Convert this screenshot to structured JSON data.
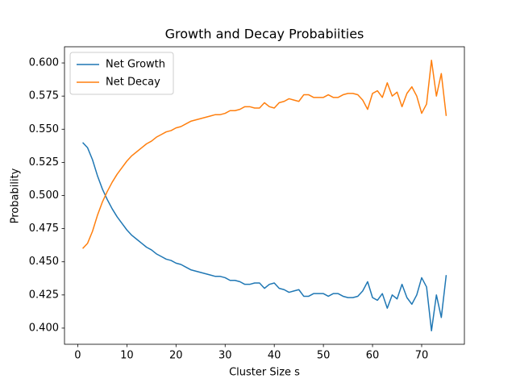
{
  "chart_data": {
    "type": "line",
    "title": "Growth and Decay Probabiities",
    "xlabel": "Cluster Size s",
    "ylabel": "Probability",
    "x": [
      1,
      2,
      3,
      4,
      5,
      6,
      7,
      8,
      9,
      10,
      11,
      12,
      13,
      14,
      15,
      16,
      17,
      18,
      19,
      20,
      21,
      22,
      23,
      24,
      25,
      26,
      27,
      28,
      29,
      30,
      31,
      32,
      33,
      34,
      35,
      36,
      37,
      38,
      39,
      40,
      41,
      42,
      43,
      44,
      45,
      46,
      47,
      48,
      49,
      50,
      51,
      52,
      53,
      54,
      55,
      56,
      57,
      58,
      59,
      60,
      61,
      62,
      63,
      64,
      65,
      66,
      67,
      68,
      69,
      70,
      71,
      72,
      73,
      74,
      75
    ],
    "series": [
      {
        "name": "Net Growth",
        "color": "#1f77b4",
        "values": [
          0.54,
          0.536,
          0.527,
          0.515,
          0.505,
          0.497,
          0.49,
          0.484,
          0.479,
          0.474,
          0.47,
          0.467,
          0.464,
          0.461,
          0.459,
          0.456,
          0.454,
          0.452,
          0.451,
          0.449,
          0.448,
          0.446,
          0.444,
          0.443,
          0.442,
          0.441,
          0.44,
          0.439,
          0.439,
          0.438,
          0.436,
          0.436,
          0.435,
          0.433,
          0.433,
          0.434,
          0.434,
          0.43,
          0.433,
          0.434,
          0.43,
          0.429,
          0.427,
          0.428,
          0.429,
          0.424,
          0.424,
          0.426,
          0.426,
          0.426,
          0.424,
          0.426,
          0.426,
          0.424,
          0.423,
          0.423,
          0.424,
          0.428,
          0.435,
          0.423,
          0.421,
          0.426,
          0.415,
          0.425,
          0.422,
          0.433,
          0.423,
          0.418,
          0.425,
          0.438,
          0.431,
          0.398,
          0.425,
          0.408,
          0.44
        ]
      },
      {
        "name": "Net Decay",
        "color": "#ff7f0e",
        "values": [
          0.46,
          0.464,
          0.473,
          0.485,
          0.495,
          0.503,
          0.51,
          0.516,
          0.521,
          0.526,
          0.53,
          0.533,
          0.536,
          0.539,
          0.541,
          0.544,
          0.546,
          0.548,
          0.549,
          0.551,
          0.552,
          0.554,
          0.556,
          0.557,
          0.558,
          0.559,
          0.56,
          0.561,
          0.561,
          0.562,
          0.564,
          0.564,
          0.565,
          0.567,
          0.567,
          0.566,
          0.566,
          0.57,
          0.567,
          0.566,
          0.57,
          0.571,
          0.573,
          0.572,
          0.571,
          0.576,
          0.576,
          0.574,
          0.574,
          0.574,
          0.576,
          0.574,
          0.574,
          0.576,
          0.577,
          0.577,
          0.576,
          0.572,
          0.565,
          0.577,
          0.579,
          0.574,
          0.585,
          0.575,
          0.578,
          0.567,
          0.577,
          0.582,
          0.575,
          0.562,
          0.569,
          0.602,
          0.575,
          0.592,
          0.56
        ]
      }
    ],
    "xlim": [
      -2.7,
      78.7
    ],
    "ylim": [
      0.3878,
      0.6122
    ],
    "xticks": [
      0,
      10,
      20,
      30,
      40,
      50,
      60,
      70
    ],
    "yticks": [
      {
        "value": 0.4,
        "label": "0.400"
      },
      {
        "value": 0.425,
        "label": "0.425"
      },
      {
        "value": 0.45,
        "label": "0.450"
      },
      {
        "value": 0.475,
        "label": "0.475"
      },
      {
        "value": 0.5,
        "label": "0.500"
      },
      {
        "value": 0.525,
        "label": "0.525"
      },
      {
        "value": 0.55,
        "label": "0.550"
      },
      {
        "value": 0.575,
        "label": "0.575"
      },
      {
        "value": 0.6,
        "label": "0.600"
      }
    ],
    "legend": "upper left",
    "grid": false
  }
}
